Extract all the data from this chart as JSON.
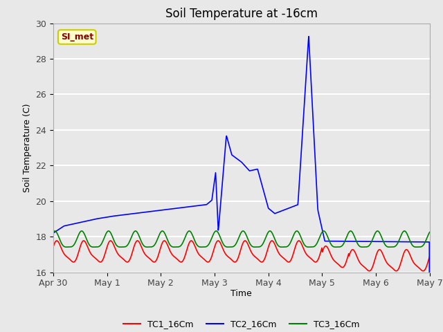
{
  "title": "Soil Temperature at -16cm",
  "xlabel": "Time",
  "ylabel": "Soil Temperature (C)",
  "ylim": [
    16,
    30
  ],
  "xlim": [
    0,
    7
  ],
  "fig_bg_color": "#e8e8e8",
  "plot_bg_color": "#e8e8e8",
  "grid_color": "white",
  "annotation_text": "SI_met",
  "annotation_bg": "#ffffcc",
  "annotation_border": "#cccc00",
  "legend_entries": [
    "TC1_16Cm",
    "TC2_16Cm",
    "TC3_16Cm"
  ],
  "line_colors": [
    "red",
    "blue",
    "green"
  ],
  "xtick_labels": [
    "Apr 30",
    "May 1",
    "May 2",
    "May 3",
    "May 4",
    "May 5",
    "May 6",
    "May 7"
  ],
  "ytick_values": [
    16,
    18,
    20,
    22,
    24,
    26,
    28,
    30
  ]
}
